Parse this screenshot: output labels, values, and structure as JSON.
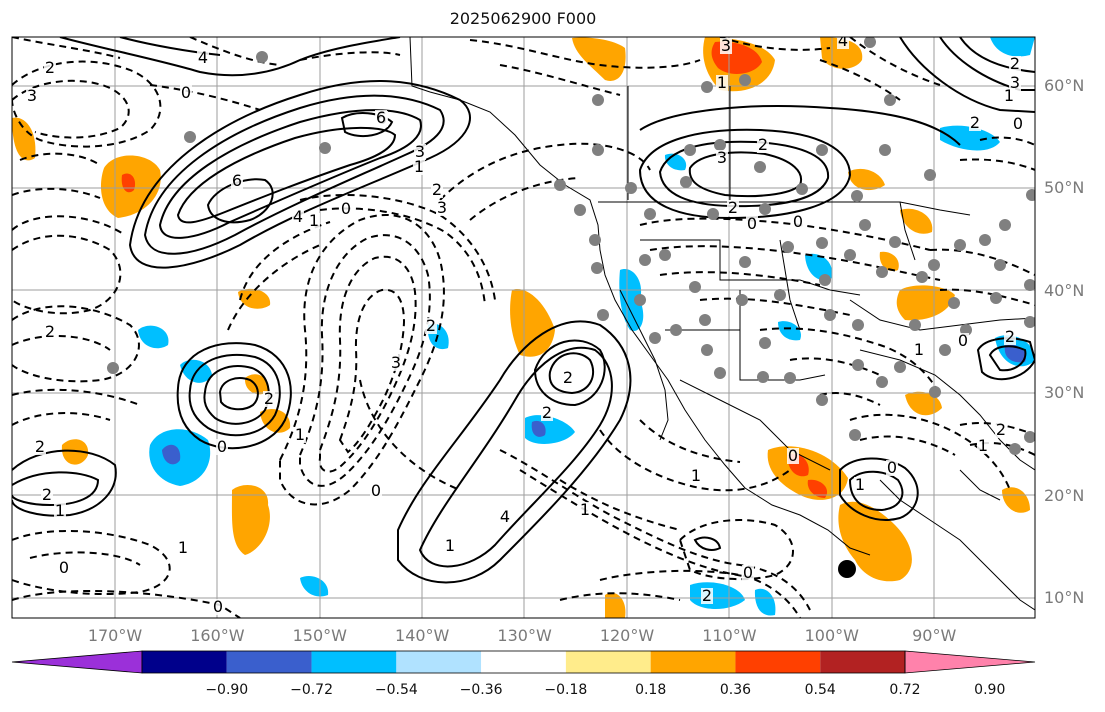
{
  "title": "2025062900 F000",
  "lat_labels": [
    {
      "text": "60°N",
      "lat": 60
    },
    {
      "text": "50°N",
      "lat": 50
    },
    {
      "text": "40°N",
      "lat": 40
    },
    {
      "text": "30°N",
      "lat": 30
    },
    {
      "text": "20°N",
      "lat": 20
    },
    {
      "text": "10°N",
      "lat": 10
    }
  ],
  "lon_labels": [
    {
      "text": "170°W",
      "lon": -170
    },
    {
      "text": "160°W",
      "lon": -160
    },
    {
      "text": "150°W",
      "lon": -150
    },
    {
      "text": "140°W",
      "lon": -140
    },
    {
      "text": "130°W",
      "lon": -130
    },
    {
      "text": "120°W",
      "lon": -120
    },
    {
      "text": "110°W",
      "lon": -110
    },
    {
      "text": "100°W",
      "lon": -100
    },
    {
      "text": "90°W",
      "lon": -90
    }
  ],
  "colorbar": {
    "colors": [
      "#9b30d9",
      "#00008b",
      "#3a5fcd",
      "#00bfff",
      "#b0e2ff",
      "#ffffff",
      "#ffec8b",
      "#ffa500",
      "#ff4000",
      "#b22222",
      "#ff82ab"
    ],
    "tick_labels": [
      "−0.90",
      "−0.72",
      "−0.54",
      "−0.36",
      "−0.18",
      "0.18",
      "0.36",
      "0.54",
      "0.72",
      "0.90"
    ]
  },
  "contour_labels": [
    "2",
    "4",
    "3",
    "6",
    "0",
    "6",
    "4",
    "3",
    "2",
    "1",
    "0",
    "2",
    "3",
    "1",
    "2",
    "0",
    "1",
    "3",
    "0",
    "2",
    "1",
    "2",
    "4",
    "2",
    "1",
    "3",
    "6",
    "3",
    "2",
    "4",
    "2",
    "0",
    "0",
    "1",
    "2",
    "3",
    "0",
    "2",
    "1",
    "2",
    "1",
    "1",
    "0",
    "0",
    "1",
    "2",
    "1",
    "0",
    "2",
    "2",
    "1",
    "0",
    "1",
    "0",
    "2",
    "0"
  ]
}
